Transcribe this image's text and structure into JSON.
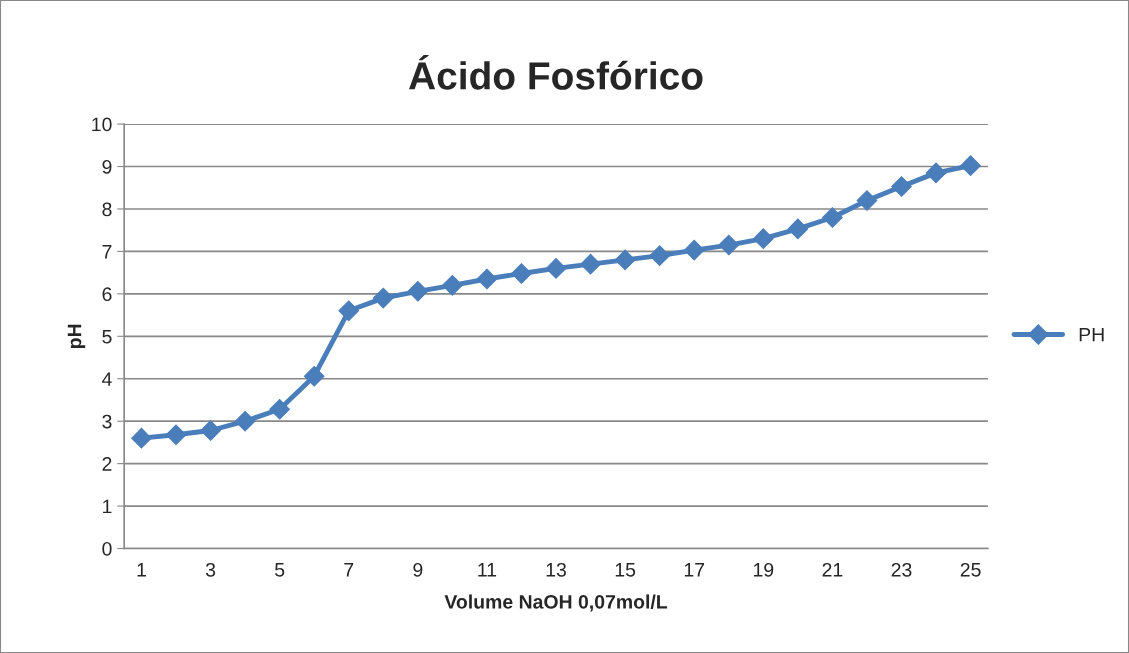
{
  "chart_data": {
    "type": "line",
    "title": "Ácido Fosfórico",
    "xlabel": "Volume NaOH 0,07mol/L",
    "ylabel": "pH",
    "categories": [
      "1",
      null,
      "3",
      null,
      "5",
      null,
      "7",
      null,
      "9",
      null,
      "11",
      null,
      "13",
      null,
      "15",
      null,
      "17",
      null,
      "19",
      null,
      "21",
      null,
      "23",
      null,
      "25"
    ],
    "series": [
      {
        "name": "PH",
        "color": "#4a7ebb",
        "values": [
          2.6,
          2.68,
          2.78,
          3.0,
          3.28,
          4.06,
          5.6,
          5.9,
          6.06,
          6.2,
          6.35,
          6.48,
          6.6,
          6.7,
          6.8,
          6.9,
          7.03,
          7.15,
          7.3,
          7.53,
          7.8,
          8.2,
          8.53,
          8.85,
          9.02
        ]
      }
    ],
    "ylim": [
      0,
      10
    ],
    "yticks": [
      0,
      1,
      2,
      3,
      4,
      5,
      6,
      7,
      8,
      9,
      10
    ],
    "grid": "y",
    "legend": "right",
    "marker": "diamond",
    "line_style": "solid"
  }
}
